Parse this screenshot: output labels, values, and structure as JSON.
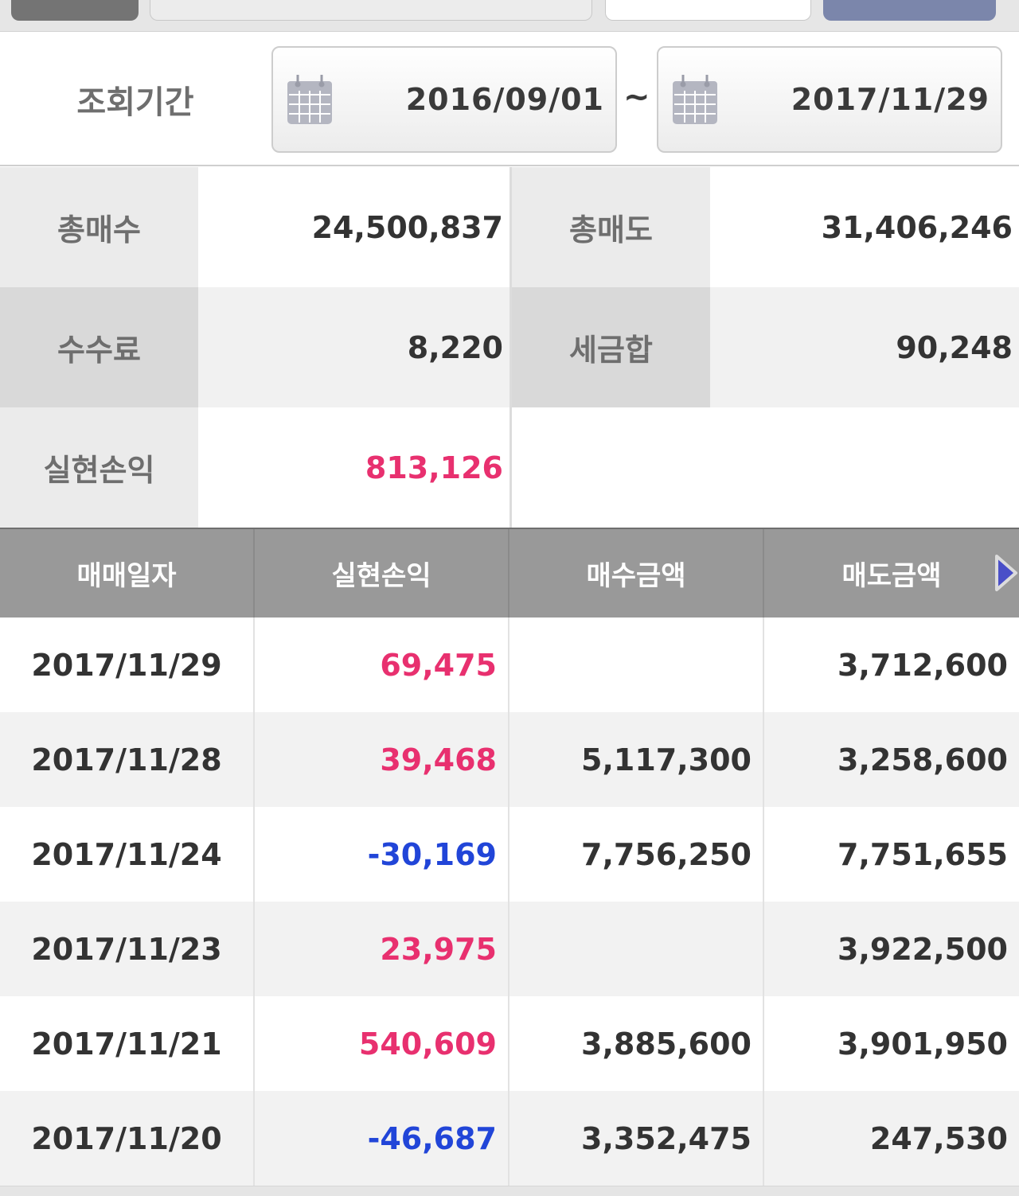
{
  "colors": {
    "positive": "#e8306f",
    "negative": "#2145d8",
    "header_bg": "#999999",
    "arrow": "#4a4fc8"
  },
  "period": {
    "label": "조회기간",
    "start_date": "2016/09/01",
    "separator": "~",
    "end_date": "2017/11/29",
    "calendar_icon": "calendar-icon"
  },
  "summary": {
    "total_buy_label": "총매수",
    "total_buy_value": "24,500,837",
    "total_sell_label": "총매도",
    "total_sell_value": "31,406,246",
    "fee_label": "수수료",
    "fee_value": "8,220",
    "tax_label": "세금합",
    "tax_value": "90,248",
    "realized_label": "실현손익",
    "realized_value": "813,126"
  },
  "table": {
    "headers": [
      "매매일자",
      "실현손익",
      "매수금액",
      "매도금액"
    ],
    "next_icon": "triangle-right-icon",
    "rows": [
      {
        "date": "2017/11/29",
        "pnl": "69,475",
        "buy": "",
        "sell": "3,712,600"
      },
      {
        "date": "2017/11/28",
        "pnl": "39,468",
        "buy": "5,117,300",
        "sell": "3,258,600"
      },
      {
        "date": "2017/11/24",
        "pnl": "-30,169",
        "buy": "7,756,250",
        "sell": "7,751,655"
      },
      {
        "date": "2017/11/23",
        "pnl": "23,975",
        "buy": "",
        "sell": "3,922,500"
      },
      {
        "date": "2017/11/21",
        "pnl": "540,609",
        "buy": "3,885,600",
        "sell": "3,901,950"
      },
      {
        "date": "2017/11/20",
        "pnl": "-46,687",
        "buy": "3,352,475",
        "sell": "247,530"
      }
    ]
  }
}
